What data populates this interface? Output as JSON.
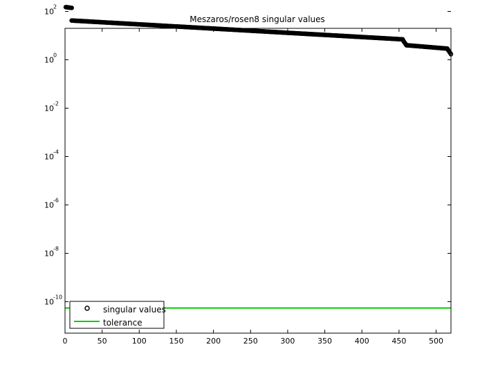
{
  "chart_data": {
    "type": "scatter",
    "title": "Meszaros/rosen8 singular values",
    "xlabel": "",
    "ylabel": "",
    "xlim": [
      0,
      520
    ],
    "ylim_log10": [
      -11.3,
      1.3
    ],
    "y_scale": "log",
    "grid": false,
    "legend_position": "bottom-left",
    "x_ticks": [
      0,
      50,
      100,
      150,
      200,
      250,
      300,
      350,
      400,
      450,
      500
    ],
    "y_ticks": [
      {
        "base": "10",
        "exp": "2",
        "log10": 2
      },
      {
        "base": "10",
        "exp": "0",
        "log10": 0
      },
      {
        "base": "10",
        "exp": "-2",
        "log10": -2
      },
      {
        "base": "10",
        "exp": "-4",
        "log10": -4
      },
      {
        "base": "10",
        "exp": "-6",
        "log10": -6
      },
      {
        "base": "10",
        "exp": "-8",
        "log10": -8
      },
      {
        "base": "10",
        "exp": "-10",
        "log10": -10
      }
    ],
    "series": [
      {
        "name": "singular values",
        "marker": "circle",
        "color": "#000000",
        "segments": [
          {
            "x_from": 1,
            "x_to": 9,
            "y_from": 150,
            "y_to": 140
          },
          {
            "x_from": 9,
            "x_to": 455,
            "y_from": 42,
            "y_to": 7
          },
          {
            "x_from": 456,
            "x_to": 460,
            "y_from": 6,
            "y_to": 4
          },
          {
            "x_from": 460,
            "x_to": 515,
            "y_from": 4,
            "y_to": 2.9
          },
          {
            "x_from": 515,
            "x_to": 520,
            "y_from": 2.9,
            "y_to": 1.7
          }
        ]
      },
      {
        "name": "tolerance",
        "color": "#00cc00",
        "y": 5.5e-11
      }
    ]
  }
}
